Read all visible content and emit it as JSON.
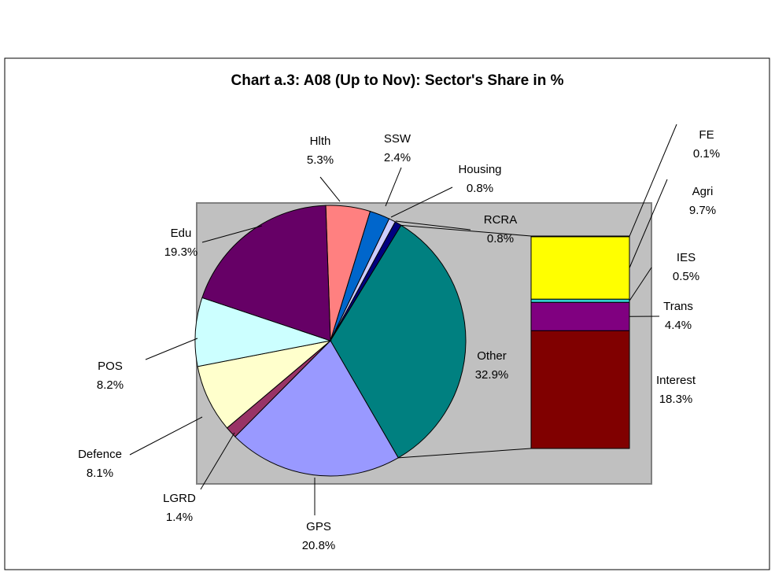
{
  "chart_data": {
    "type": "pie",
    "title": "Chart a.3: A08 (Up to Nov): Sector's Share in %",
    "categories": [
      "Hlth",
      "SSW",
      "Housing",
      "RCRA",
      "Other",
      "GPS",
      "LGRD",
      "Defence",
      "POS",
      "Edu"
    ],
    "values": [
      5.3,
      2.4,
      0.8,
      0.8,
      32.9,
      20.8,
      1.4,
      8.1,
      8.2,
      19.3
    ],
    "value_labels": [
      "5.3%",
      "2.4%",
      "0.8%",
      "0.8%",
      "32.9%",
      "20.8%",
      "1.4%",
      "8.1%",
      "8.2%",
      "19.3%"
    ],
    "colors": [
      "#ff8080",
      "#0066cc",
      "#ccccff",
      "#000080",
      "#008080",
      "#9999ff",
      "#993366",
      "#ffffcc",
      "#ccffff",
      "#660066"
    ],
    "bar_of_pie": {
      "categories": [
        "FE",
        "Agri",
        "IES",
        "Trans",
        "Interest"
      ],
      "values": [
        0.1,
        9.7,
        0.5,
        4.4,
        18.3
      ],
      "value_labels": [
        "0.1%",
        "9.7%",
        "0.5%",
        "4.4%",
        "18.3%"
      ],
      "colors": [
        "#ff00ff",
        "#ffff00",
        "#33cccc",
        "#800080",
        "#800000"
      ]
    }
  }
}
